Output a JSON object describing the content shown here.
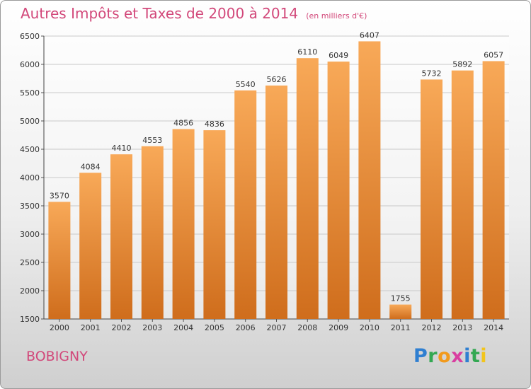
{
  "title": "Autres Impôts et Taxes de 2000 à 2014",
  "unit_note": "(en milliers d'€)",
  "city": "BOBIGNY",
  "logo": "Proxiti",
  "colors": {
    "accent_text": "#d2487a",
    "bar_top": "#f8a958",
    "bar_bottom": "#cf6d1c",
    "grid": "#c9c9c9"
  },
  "chart_data": {
    "type": "bar",
    "categories": [
      "2000",
      "2001",
      "2002",
      "2003",
      "2004",
      "2005",
      "2006",
      "2007",
      "2008",
      "2009",
      "2010",
      "2011",
      "2012",
      "2013",
      "2014"
    ],
    "values": [
      3570,
      4084,
      4410,
      4553,
      4856,
      4836,
      5540,
      5626,
      6110,
      6049,
      6407,
      1755,
      5732,
      5892,
      6057
    ],
    "ylim": [
      1500,
      6500
    ],
    "yticks": [
      1500,
      2000,
      2500,
      3000,
      3500,
      4000,
      4500,
      5000,
      5500,
      6000,
      6500
    ],
    "grid": true,
    "legend": "none"
  }
}
